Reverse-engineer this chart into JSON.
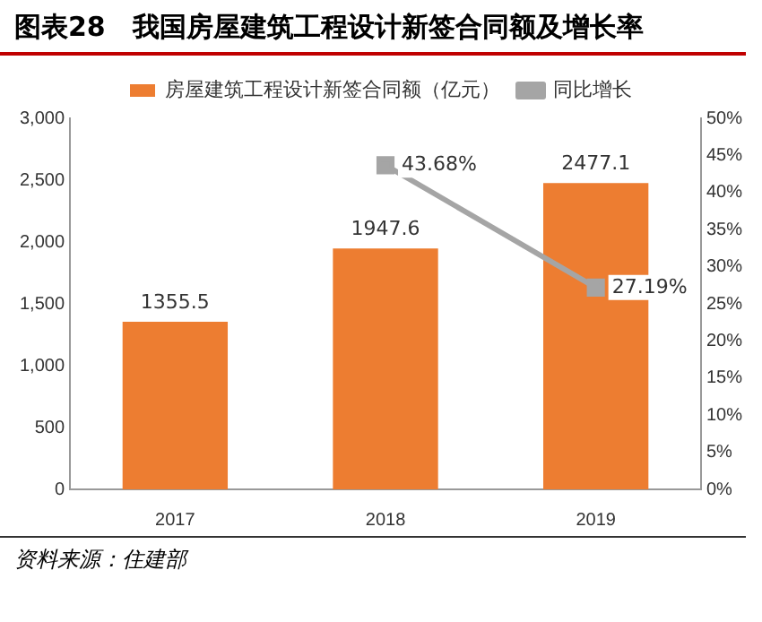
{
  "chart_data": {
    "type": "bar",
    "title": "图表28　我国房屋建筑工程设计新签合同额及增长率",
    "categories": [
      "2017",
      "2018",
      "2019"
    ],
    "series": [
      {
        "name": "房屋建筑工程设计新签合同额（亿元）",
        "color": "#ed7d31",
        "values": [
          1355.5,
          1947.6,
          2477.1
        ],
        "data_labels": true
      },
      {
        "name": "同比增长",
        "type": "line",
        "axis": "y2",
        "color": "#a5a5a5",
        "values": [
          null,
          43.68,
          27.19
        ],
        "value_labels": [
          null,
          "43.68%",
          "27.19%"
        ],
        "marker": "square"
      }
    ],
    "ylim": [
      0,
      3000
    ],
    "yticks": [
      0,
      {
        "value": 500,
        "label": "500"
      },
      {
        "value": 1000,
        "label": "1,000"
      },
      {
        "value": 1500,
        "label": "1,500"
      },
      {
        "value": 2000,
        "label": "2,000"
      },
      {
        "value": 2500,
        "label": "2,500"
      },
      {
        "value": 3000,
        "label": "3,000"
      }
    ],
    "y2lim": [
      0,
      50
    ],
    "y2ticks": [
      {
        "value": 0,
        "label": "0%"
      },
      {
        "value": 5,
        "label": "5%"
      },
      {
        "value": 10,
        "label": "10%"
      },
      {
        "value": 15,
        "label": "15%"
      },
      {
        "value": 20,
        "label": "20%"
      },
      {
        "value": 25,
        "label": "25%"
      },
      {
        "value": 30,
        "label": "30%"
      },
      {
        "value": 35,
        "label": "35%"
      },
      {
        "value": 40,
        "label": "40%"
      },
      {
        "value": 45,
        "label": "45%"
      },
      {
        "value": 50,
        "label": "50%"
      }
    ],
    "grid": false,
    "legend": "top",
    "annotations": [
      "资料来源：住建部"
    ]
  }
}
